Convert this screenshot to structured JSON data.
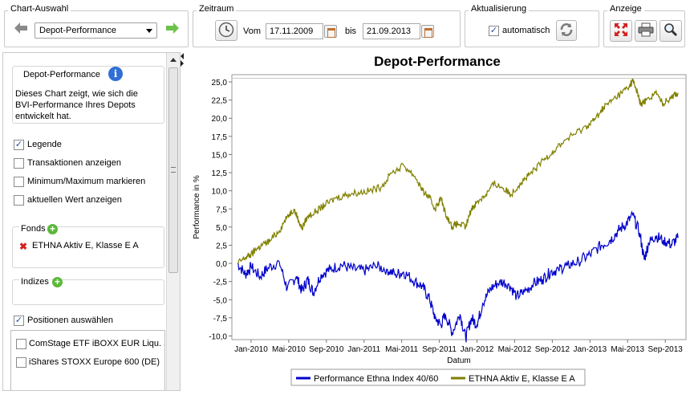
{
  "toolbar": {
    "chart_selection": {
      "title": "Chart-Auswahl",
      "selected": "Depot-Performance"
    },
    "period": {
      "title": "Zeitraum",
      "from_label": "Vom",
      "from_value": "17.11.2009",
      "to_label": "bis",
      "to_value": "21.09.2013"
    },
    "refresh": {
      "title": "Aktualisierung",
      "auto_label": "automatisch",
      "auto_checked": true
    },
    "display": {
      "title": "Anzeige"
    }
  },
  "sidebar": {
    "info_title": "Depot-Performance",
    "info_text_1": "Dieses Chart zeigt, wie sich die",
    "info_text_2": "BVI-Performance Ihres Depots",
    "info_text_3": "entwickelt hat.",
    "options": [
      {
        "label": "Legende",
        "checked": true
      },
      {
        "label": "Transaktionen anzeigen",
        "checked": false
      },
      {
        "label": "Minimum/Maximum markieren",
        "checked": false
      },
      {
        "label": "aktuellen Wert anzeigen",
        "checked": false
      }
    ],
    "funds_title": "Fonds",
    "funds": [
      "ETHNA Aktiv E, Klasse E A"
    ],
    "indices_title": "Indizes",
    "positions_label": "Positionen auswählen",
    "positions_checked": true,
    "positions": [
      {
        "label": "ComStage ETF iBOXX EUR Liqu. Sov",
        "checked": false
      },
      {
        "label": "iShares STOXX Europe 600 (DE)",
        "checked": false
      }
    ]
  },
  "chart_data": {
    "type": "line",
    "title": "Depot-Performance",
    "xlabel": "Datum",
    "ylabel": "Performance in %",
    "ylim": [
      -10.5,
      26
    ],
    "y_ticks": [
      "25,0",
      "22,5",
      "20,0",
      "17,5",
      "15,0",
      "12,5",
      "10,0",
      "7,5",
      "5,0",
      "2,5",
      "0,0",
      "-2,5",
      "-5,0",
      "-7,5",
      "-10,0"
    ],
    "x_ticks": [
      "Jan-2010",
      "Mai-2010",
      "Sep-2010",
      "Jan-2011",
      "Mai-2011",
      "Sep-2011",
      "Jan-2012",
      "Mai-2012",
      "Sep-2012",
      "Jan-2013",
      "Mai-2013",
      "Sep-2013"
    ],
    "grid": false,
    "legend_position": "bottom",
    "series": [
      {
        "name": "Performance Ethna Index 40/60",
        "color": "#0000cc",
        "values": [
          [
            2009.88,
            0
          ],
          [
            2009.95,
            -1.5
          ],
          [
            2010.0,
            -0.5
          ],
          [
            2010.08,
            -1.8
          ],
          [
            2010.15,
            -0.6
          ],
          [
            2010.25,
            0.2
          ],
          [
            2010.32,
            -3.5
          ],
          [
            2010.4,
            -1.8
          ],
          [
            2010.45,
            -3.8
          ],
          [
            2010.5,
            -2.2
          ],
          [
            2010.55,
            -4
          ],
          [
            2010.62,
            -1.5
          ],
          [
            2010.7,
            -0.8
          ],
          [
            2010.8,
            -0.2
          ],
          [
            2010.9,
            -0.8
          ],
          [
            2011.0,
            -1
          ],
          [
            2011.1,
            -0.4
          ],
          [
            2011.2,
            -0.8
          ],
          [
            2011.28,
            -1.5
          ],
          [
            2011.35,
            -1.2
          ],
          [
            2011.45,
            -2.5
          ],
          [
            2011.52,
            -3.2
          ],
          [
            2011.58,
            -5
          ],
          [
            2011.63,
            -7.5
          ],
          [
            2011.68,
            -8.5
          ],
          [
            2011.72,
            -7
          ],
          [
            2011.78,
            -9.5
          ],
          [
            2011.85,
            -7
          ],
          [
            2011.9,
            -10.3
          ],
          [
            2011.95,
            -7.5
          ],
          [
            2012.0,
            -8.5
          ],
          [
            2012.05,
            -5.5
          ],
          [
            2012.12,
            -3.5
          ],
          [
            2012.2,
            -2.5
          ],
          [
            2012.28,
            -2.8
          ],
          [
            2012.35,
            -4.5
          ],
          [
            2012.42,
            -4
          ],
          [
            2012.5,
            -2.8
          ],
          [
            2012.58,
            -2.2
          ],
          [
            2012.65,
            -1.2
          ],
          [
            2012.72,
            -0.8
          ],
          [
            2012.8,
            -0.3
          ],
          [
            2012.9,
            0.3
          ],
          [
            2013.0,
            1.2
          ],
          [
            2013.1,
            2.5
          ],
          [
            2013.18,
            3.2
          ],
          [
            2013.25,
            4.5
          ],
          [
            2013.32,
            5.5
          ],
          [
            2013.38,
            6.6
          ],
          [
            2013.44,
            4.2
          ],
          [
            2013.48,
            0.5
          ],
          [
            2013.52,
            2.8
          ],
          [
            2013.58,
            3.8
          ],
          [
            2013.65,
            3.2
          ],
          [
            2013.72,
            2.6
          ],
          [
            2013.78,
            3.5
          ]
        ]
      },
      {
        "name": "ETHNA Aktiv E, Klasse E A",
        "color": "#808000",
        "values": [
          [
            2009.88,
            0
          ],
          [
            2009.95,
            0.8
          ],
          [
            2010.0,
            1.2
          ],
          [
            2010.05,
            2
          ],
          [
            2010.1,
            2.5
          ],
          [
            2010.17,
            3.2
          ],
          [
            2010.25,
            4.5
          ],
          [
            2010.32,
            6.5
          ],
          [
            2010.38,
            7.5
          ],
          [
            2010.42,
            6
          ],
          [
            2010.45,
            4.8
          ],
          [
            2010.5,
            6.5
          ],
          [
            2010.58,
            7.2
          ],
          [
            2010.65,
            8
          ],
          [
            2010.75,
            9
          ],
          [
            2010.85,
            9.5
          ],
          [
            2010.95,
            9.8
          ],
          [
            2011.05,
            10
          ],
          [
            2011.15,
            10.5
          ],
          [
            2011.25,
            12.5
          ],
          [
            2011.35,
            13.5
          ],
          [
            2011.45,
            12
          ],
          [
            2011.52,
            10
          ],
          [
            2011.58,
            9
          ],
          [
            2011.63,
            7.5
          ],
          [
            2011.68,
            9
          ],
          [
            2011.72,
            7
          ],
          [
            2011.78,
            5
          ],
          [
            2011.83,
            5.5
          ],
          [
            2011.9,
            5
          ],
          [
            2011.95,
            7.5
          ],
          [
            2012.0,
            8.5
          ],
          [
            2012.08,
            9.5
          ],
          [
            2012.15,
            11
          ],
          [
            2012.22,
            10.5
          ],
          [
            2012.3,
            9.5
          ],
          [
            2012.38,
            11
          ],
          [
            2012.45,
            12
          ],
          [
            2012.52,
            13
          ],
          [
            2012.6,
            14.5
          ],
          [
            2012.68,
            15.5
          ],
          [
            2012.78,
            17
          ],
          [
            2012.88,
            18
          ],
          [
            2012.98,
            19
          ],
          [
            2013.05,
            20
          ],
          [
            2013.12,
            21.5
          ],
          [
            2013.2,
            22.5
          ],
          [
            2013.28,
            23.5
          ],
          [
            2013.35,
            24.5
          ],
          [
            2013.38,
            25.2
          ],
          [
            2013.42,
            23.5
          ],
          [
            2013.45,
            21.8
          ],
          [
            2013.5,
            22.5
          ],
          [
            2013.58,
            23.5
          ],
          [
            2013.65,
            22
          ],
          [
            2013.72,
            23
          ],
          [
            2013.78,
            23.5
          ]
        ]
      }
    ]
  }
}
